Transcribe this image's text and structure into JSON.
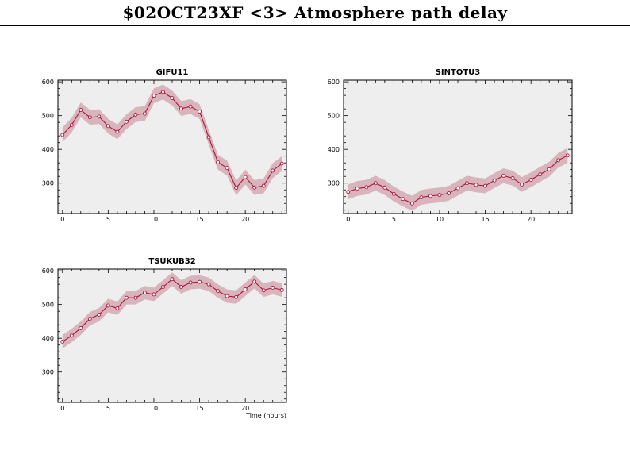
{
  "page": {
    "title": "$02OCT23XF <3>  Atmosphere path delay"
  },
  "style": {
    "line_color": "#b0123a",
    "band_color": "#d8b5bc",
    "plot_bg": "#eeeeee"
  },
  "chart_data": [
    {
      "type": "line",
      "title": "GIFU11",
      "xlabel": "",
      "ylabel": "",
      "xlim": [
        -0.5,
        24.5
      ],
      "ylim": [
        210,
        605
      ],
      "xticks": [
        0,
        5,
        10,
        15,
        20
      ],
      "yticks": [
        300,
        400,
        500,
        600
      ],
      "grid": false,
      "x": [
        0,
        1,
        2,
        3,
        4,
        5,
        6,
        7,
        8,
        9,
        10,
        11,
        12,
        13,
        14,
        15,
        16,
        17,
        18,
        19,
        20,
        21,
        22,
        23,
        24
      ],
      "series": [
        {
          "values": [
            443,
            472,
            517,
            495,
            497,
            469,
            452,
            482,
            503,
            506,
            559,
            570,
            552,
            521,
            527,
            512,
            436,
            362,
            345,
            286,
            318,
            287,
            292,
            337,
            358
          ],
          "band": 22
        }
      ]
    },
    {
      "type": "line",
      "title": "SINTOTU3",
      "xlabel": "",
      "ylabel": "",
      "xlim": [
        -0.5,
        24.5
      ],
      "ylim": [
        210,
        605
      ],
      "xticks": [
        0,
        5,
        10,
        15,
        20
      ],
      "yticks": [
        300,
        400,
        500,
        600
      ],
      "grid": false,
      "x": [
        0,
        1,
        2,
        3,
        4,
        5,
        6,
        7,
        8,
        9,
        10,
        11,
        12,
        13,
        14,
        15,
        16,
        17,
        18,
        19,
        20,
        21,
        22,
        23,
        24
      ],
      "series": [
        {
          "values": [
            274,
            284,
            288,
            300,
            287,
            268,
            253,
            240,
            258,
            262,
            265,
            270,
            285,
            300,
            295,
            292,
            308,
            322,
            315,
            296,
            310,
            326,
            341,
            368,
            382
          ],
          "band": 22
        }
      ]
    },
    {
      "type": "line",
      "title": "TSUKUB32",
      "xlabel": "Time (hours)",
      "ylabel": "",
      "xlim": [
        -0.5,
        24.5
      ],
      "ylim": [
        210,
        605
      ],
      "xticks": [
        0,
        5,
        10,
        15,
        20
      ],
      "yticks": [
        300,
        400,
        500,
        600
      ],
      "grid": false,
      "x": [
        0,
        1,
        2,
        3,
        4,
        5,
        6,
        7,
        8,
        9,
        10,
        11,
        12,
        13,
        14,
        15,
        16,
        17,
        18,
        19,
        20,
        21,
        22,
        23,
        24
      ],
      "series": [
        {
          "values": [
            390,
            408,
            430,
            458,
            470,
            497,
            489,
            520,
            520,
            535,
            530,
            552,
            575,
            552,
            565,
            567,
            560,
            540,
            525,
            522,
            545,
            568,
            542,
            550,
            543
          ],
          "band": 20
        }
      ]
    }
  ]
}
